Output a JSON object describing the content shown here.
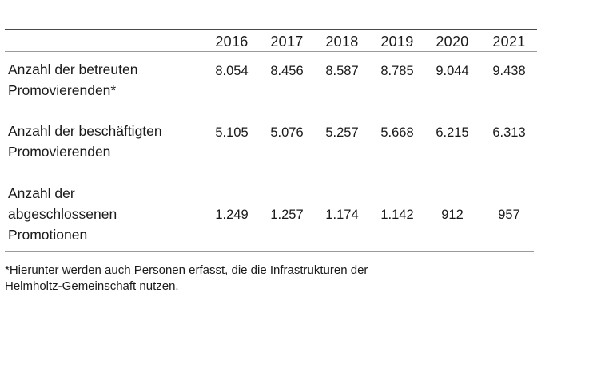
{
  "table": {
    "years": [
      "2016",
      "2017",
      "2018",
      "2019",
      "2020",
      "2021"
    ],
    "rows": [
      {
        "label_lines": [
          "Anzahl der betreuten",
          "Promovierenden*"
        ],
        "values": [
          "8.054",
          "8.456",
          "8.587",
          "8.785",
          "9.044",
          "9.438"
        ]
      },
      {
        "label_lines": [
          "Anzahl der beschäftigten",
          "Promovierenden"
        ],
        "values": [
          "5.105",
          "5.076",
          "5.257",
          "5.668",
          "6.215",
          "6.313"
        ]
      },
      {
        "label_lines": [
          "Anzahl der",
          "abgeschlossenen",
          "Promotionen"
        ],
        "values": [
          "1.249",
          "1.257",
          "1.174",
          "1.142",
          "912",
          "957"
        ]
      }
    ]
  },
  "footnote": {
    "lines": [
      "*Hierunter werden auch Personen erfasst, die die Infrastrukturen der",
      "Helmholtz-Gemeinschaft nutzen."
    ]
  }
}
